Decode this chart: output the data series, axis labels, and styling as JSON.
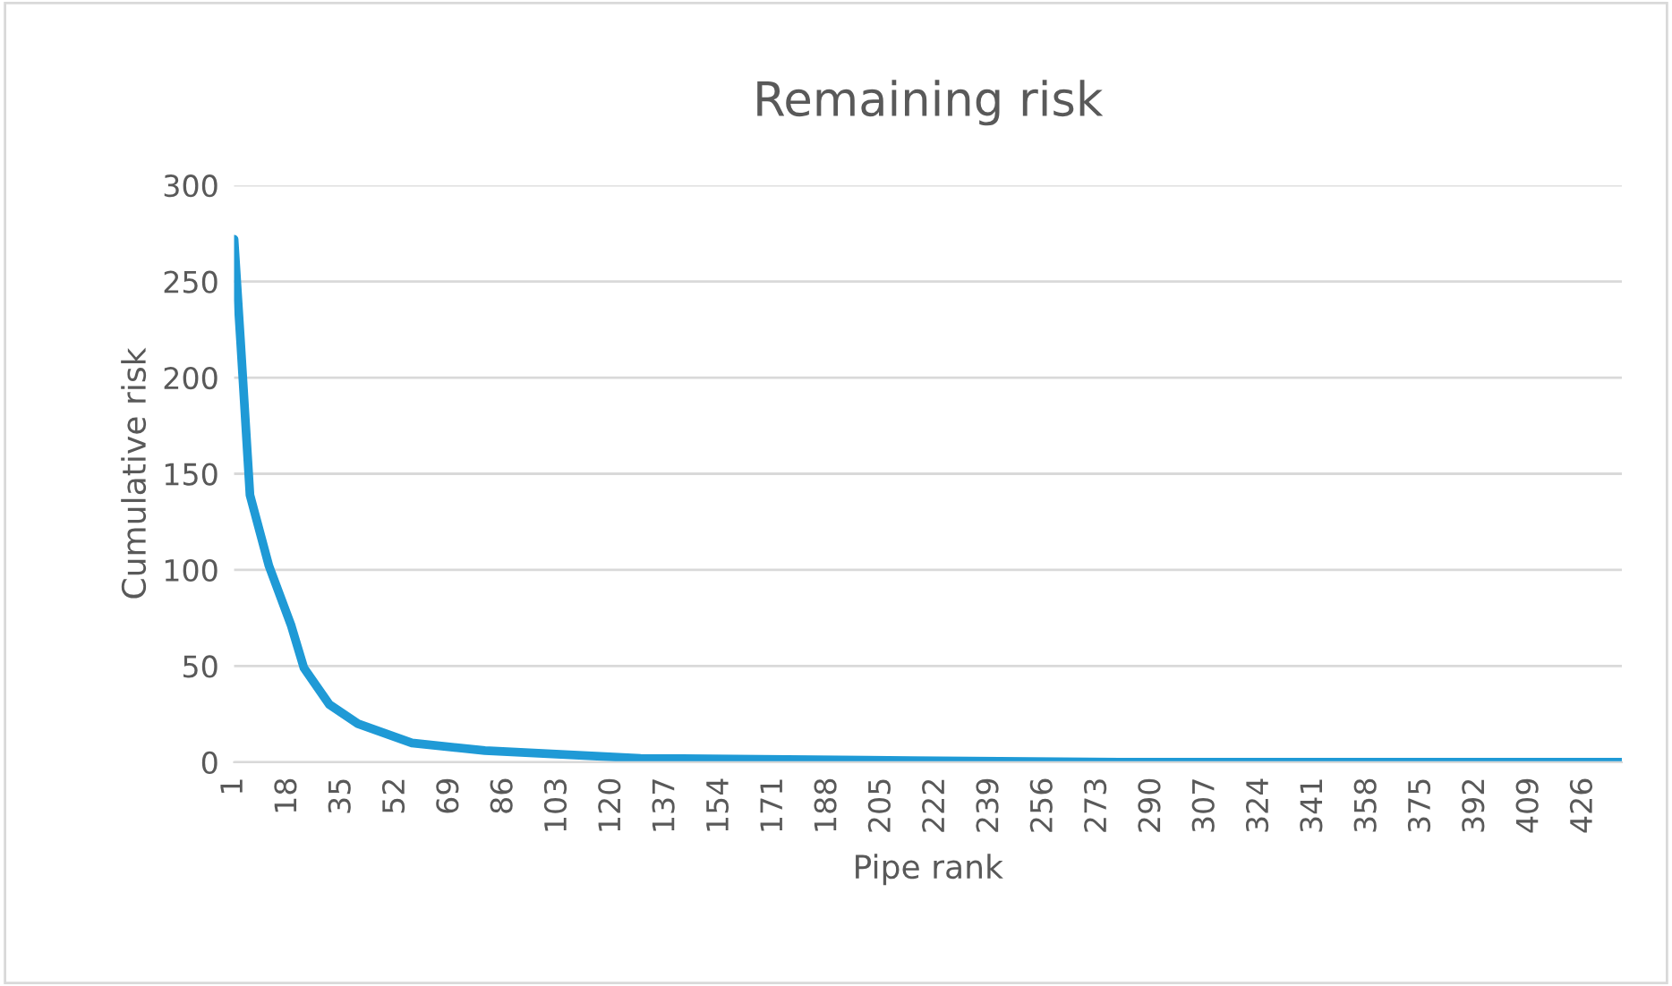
{
  "chart_data": {
    "type": "line",
    "title": "Remaining risk",
    "xlabel": "Pipe rank",
    "ylabel": "Cumulative risk",
    "series": [
      {
        "color": "#1f9ad6",
        "x": [
          1,
          3,
          6,
          12,
          19,
          23,
          31,
          40,
          57,
          80,
          129,
          200,
          280,
          438
        ],
        "values": [
          272,
          220,
          139,
          102,
          71,
          49,
          30,
          20,
          10,
          6,
          2,
          1,
          0,
          0
        ]
      }
    ],
    "xlim": [
      1,
      438
    ],
    "xticks": [
      1,
      18,
      35,
      52,
      69,
      86,
      103,
      120,
      137,
      154,
      171,
      188,
      205,
      222,
      239,
      256,
      273,
      290,
      307,
      324,
      341,
      358,
      375,
      392,
      409,
      426
    ],
    "ylim": [
      0,
      300
    ],
    "yticks": [
      0,
      50,
      100,
      150,
      200,
      250,
      300
    ],
    "grid": "y",
    "marker": "none",
    "line_style": "solid"
  }
}
